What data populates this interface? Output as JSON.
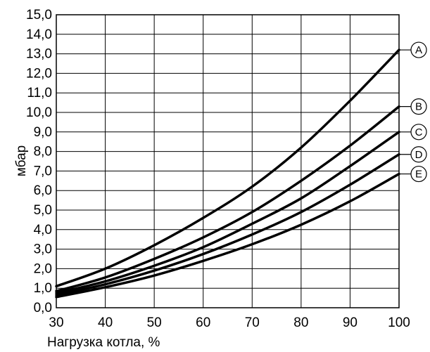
{
  "chart_data": {
    "type": "line",
    "title": "",
    "xlabel": "Нагрузка котла, %",
    "ylabel": "мбар",
    "xlim": [
      30,
      100
    ],
    "ylim": [
      0,
      15
    ],
    "x_ticks": [
      30,
      40,
      50,
      60,
      70,
      80,
      90,
      100
    ],
    "x_tick_labels": [
      "30",
      "40",
      "50",
      "60",
      "70",
      "80",
      "90",
      "100"
    ],
    "y_ticks": [
      0,
      1,
      2,
      3,
      4,
      5,
      6,
      7,
      8,
      9,
      10,
      11,
      12,
      13,
      14,
      15
    ],
    "y_tick_labels": [
      "0,0",
      "1,0",
      "2,0",
      "3,0",
      "4,0",
      "5,0",
      "6,0",
      "7,0",
      "8,0",
      "9,0",
      "10,0",
      "11,0",
      "12,0",
      "13,0",
      "14,0",
      "15,0"
    ],
    "grid": true,
    "legend": "line-end markers at right",
    "line_color": "#000000",
    "series": [
      {
        "name": "A",
        "x": [
          30,
          40,
          50,
          60,
          70,
          80,
          90,
          100
        ],
        "values": [
          1.1,
          2.0,
          3.2,
          4.6,
          6.2,
          8.2,
          10.6,
          13.2
        ]
      },
      {
        "name": "B",
        "x": [
          30,
          40,
          50,
          60,
          70,
          80,
          90,
          100
        ],
        "values": [
          0.85,
          1.55,
          2.5,
          3.6,
          4.9,
          6.5,
          8.3,
          10.3
        ]
      },
      {
        "name": "C",
        "x": [
          30,
          40,
          50,
          60,
          70,
          80,
          90,
          100
        ],
        "values": [
          0.75,
          1.35,
          2.15,
          3.1,
          4.3,
          5.6,
          7.25,
          9.0
        ]
      },
      {
        "name": "D",
        "x": [
          30,
          40,
          50,
          60,
          70,
          80,
          90,
          100
        ],
        "values": [
          0.65,
          1.2,
          1.9,
          2.75,
          3.75,
          4.9,
          6.3,
          7.85
        ]
      },
      {
        "name": "E",
        "x": [
          30,
          40,
          50,
          60,
          70,
          80,
          90,
          100
        ],
        "values": [
          0.55,
          1.05,
          1.65,
          2.4,
          3.25,
          4.25,
          5.45,
          6.85
        ]
      }
    ]
  }
}
